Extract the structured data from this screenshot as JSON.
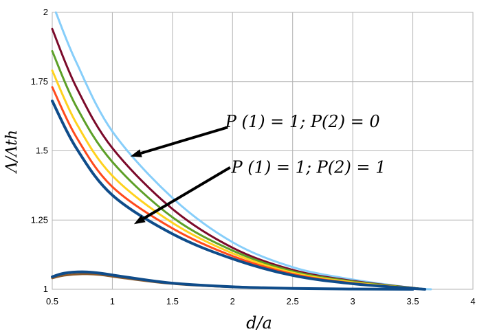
{
  "chart_data": {
    "type": "line",
    "title": "",
    "xlabel": "d/a",
    "ylabel": "Λ/Λth",
    "xlim": [
      0.5,
      4
    ],
    "ylim": [
      1,
      2
    ],
    "grid": true,
    "legend": "none",
    "x_ticks": [
      {
        "value": 0.5,
        "label": "0.5"
      },
      {
        "value": 1,
        "label": "1"
      },
      {
        "value": 1.5,
        "label": "1.5"
      },
      {
        "value": 2,
        "label": "2"
      },
      {
        "value": 2.5,
        "label": "2.5"
      },
      {
        "value": 3,
        "label": "3"
      },
      {
        "value": 3.5,
        "label": "3.5"
      },
      {
        "value": 4,
        "label": "4"
      }
    ],
    "y_ticks": [
      {
        "value": 1,
        "label": "1"
      },
      {
        "value": 1.25,
        "label": "1.25"
      },
      {
        "value": 1.5,
        "label": "1.5"
      },
      {
        "value": 1.75,
        "label": "1.75"
      },
      {
        "value": 2,
        "label": "2"
      }
    ],
    "series": [
      {
        "color": "#87CEFA",
        "stroke": 3,
        "x": [
          0.53,
          0.7,
          1,
          1.5,
          2,
          2.5,
          3,
          3.5,
          3.65
        ],
        "y": [
          2.0,
          1.82,
          1.57,
          1.33,
          1.17,
          1.08,
          1.035,
          1.005,
          1.0
        ]
      },
      {
        "color": "#7B0A2A",
        "stroke": 3,
        "x": [
          0.5,
          0.7,
          1,
          1.5,
          2,
          2.5,
          3,
          3.5,
          3.6
        ],
        "y": [
          1.94,
          1.73,
          1.51,
          1.29,
          1.15,
          1.07,
          1.03,
          1.005,
          1.0
        ]
      },
      {
        "color": "#5DA028",
        "stroke": 3,
        "x": [
          0.5,
          0.7,
          1,
          1.5,
          2,
          2.5,
          3,
          3.5,
          3.6
        ],
        "y": [
          1.86,
          1.66,
          1.46,
          1.26,
          1.14,
          1.065,
          1.028,
          1.005,
          1.0
        ]
      },
      {
        "color": "#FFD21E",
        "stroke": 3,
        "x": [
          0.5,
          0.7,
          1,
          1.5,
          2,
          2.5,
          3,
          3.5,
          3.6
        ],
        "y": [
          1.79,
          1.6,
          1.41,
          1.24,
          1.13,
          1.06,
          1.025,
          1.004,
          1.0
        ]
      },
      {
        "color": "#FF4A1C",
        "stroke": 3,
        "x": [
          0.5,
          0.7,
          1,
          1.5,
          2,
          2.5,
          3,
          3.5,
          3.6
        ],
        "y": [
          1.73,
          1.55,
          1.37,
          1.22,
          1.12,
          1.055,
          1.022,
          1.004,
          1.0
        ]
      },
      {
        "color": "#0F4C8A",
        "stroke": 4,
        "x": [
          0.5,
          0.7,
          1,
          1.5,
          2,
          2.5,
          3,
          3.5,
          3.6
        ],
        "y": [
          1.68,
          1.51,
          1.34,
          1.2,
          1.11,
          1.05,
          1.02,
          1.003,
          1.0
        ]
      },
      {
        "color": "#8B5A2B",
        "stroke": 3,
        "x": [
          0.5,
          0.6,
          0.75,
          0.9,
          1.1,
          1.5,
          2,
          2.5,
          3,
          3.5
        ],
        "y": [
          1.04,
          1.05,
          1.055,
          1.052,
          1.04,
          1.02,
          1.008,
          1.003,
          1.001,
          1.0
        ]
      },
      {
        "color": "#0F4C8A",
        "stroke": 4,
        "x": [
          0.5,
          0.6,
          0.75,
          0.9,
          1.1,
          1.5,
          2,
          2.5,
          3,
          3.5
        ],
        "y": [
          1.045,
          1.058,
          1.063,
          1.058,
          1.045,
          1.022,
          1.009,
          1.003,
          1.001,
          1.0
        ]
      }
    ],
    "annotations": [
      {
        "label": "P (1) = 1; P(2) = 0",
        "text_x": 1.94,
        "text_y": 1.585,
        "arrow_from": [
          1.96,
          1.585
        ],
        "arrow_to": [
          1.15,
          1.48
        ]
      },
      {
        "label": "P (1) = 1; P(2) = 1",
        "text_x": 1.99,
        "text_y": 1.42,
        "arrow_from": [
          1.98,
          1.44
        ],
        "arrow_to": [
          1.18,
          1.235
        ]
      }
    ]
  }
}
